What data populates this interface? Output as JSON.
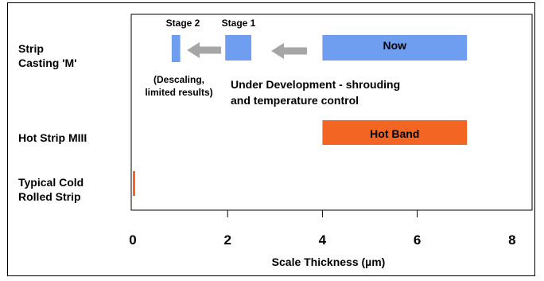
{
  "chart_data": {
    "type": "bar",
    "title": "",
    "xlabel": "Scale Thickness (µm)",
    "xlim": [
      0,
      8
    ],
    "xticks": [
      "0",
      "2",
      "4",
      "6",
      "8"
    ],
    "categories": [
      "Strip Casting 'M'",
      "Hot Strip MIII",
      "Typical Cold Rolled Strip"
    ],
    "category_lines": [
      [
        "Strip",
        "Casting 'M'"
      ],
      [
        "Hot Strip MIII"
      ],
      [
        "Typical Cold",
        "Rolled Strip"
      ]
    ],
    "colors": {
      "blue": "#6F9EF0",
      "orange": "#F26522",
      "arrow": "#A6A6A6"
    },
    "bars": [
      {
        "category": "Strip Casting 'M'",
        "label": "Now",
        "start": 4.0,
        "end": 7.05,
        "color": "#6F9EF0"
      },
      {
        "category": "Strip Casting 'M'",
        "label": "Stage 1",
        "start": 1.95,
        "end": 2.5,
        "color": "#6F9EF0"
      },
      {
        "category": "Strip Casting 'M'",
        "label": "Stage 2",
        "start": 0.82,
        "end": 1.0,
        "color": "#6F9EF0"
      },
      {
        "category": "Hot Strip MIII",
        "label": "Hot Band",
        "start": 4.0,
        "end": 7.05,
        "color": "#F26522"
      },
      {
        "category": "Typical Cold Rolled Strip",
        "label": "",
        "start": 0.0,
        "end": 0.05,
        "color": "#F26522"
      }
    ],
    "annotations": {
      "descaling": [
        "(Descaling,",
        "limited results)"
      ],
      "development": [
        "Under Development -  shrouding",
        "and temperature control"
      ]
    }
  }
}
